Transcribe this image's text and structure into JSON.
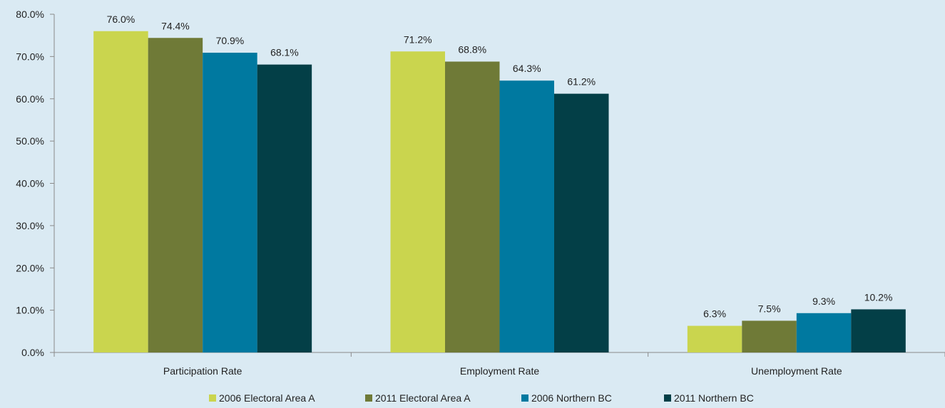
{
  "chart_data": {
    "type": "bar",
    "categories": [
      "Participation Rate",
      "Employment Rate",
      "Unemployment Rate"
    ],
    "series": [
      {
        "name": "2006 Electoral Area A",
        "color": "#cad54e",
        "values": [
          76.0,
          71.2,
          6.3
        ],
        "labels": [
          "76.0%",
          "71.2%",
          "6.3%"
        ]
      },
      {
        "name": "2011 Electoral Area A",
        "color": "#6f7a37",
        "values": [
          74.4,
          68.8,
          7.5
        ],
        "labels": [
          "74.4%",
          "68.8%",
          "7.5%"
        ]
      },
      {
        "name": "2006 Northern BC",
        "color": "#0079a0",
        "values": [
          70.9,
          64.3,
          9.3
        ],
        "labels": [
          "70.9%",
          "64.3%",
          "9.3%"
        ]
      },
      {
        "name": "2011 Northern BC",
        "color": "#033f47",
        "values": [
          68.1,
          61.2,
          10.2
        ],
        "labels": [
          "68.1%",
          "61.2%",
          "10.2%"
        ]
      }
    ],
    "ylim": [
      0,
      80
    ],
    "yticks": [
      "0.0%",
      "10.0%",
      "20.0%",
      "30.0%",
      "40.0%",
      "50.0%",
      "60.0%",
      "70.0%",
      "80.0%"
    ],
    "grid": false,
    "legend_position": "bottom",
    "title": "",
    "xlabel": "",
    "ylabel": ""
  }
}
